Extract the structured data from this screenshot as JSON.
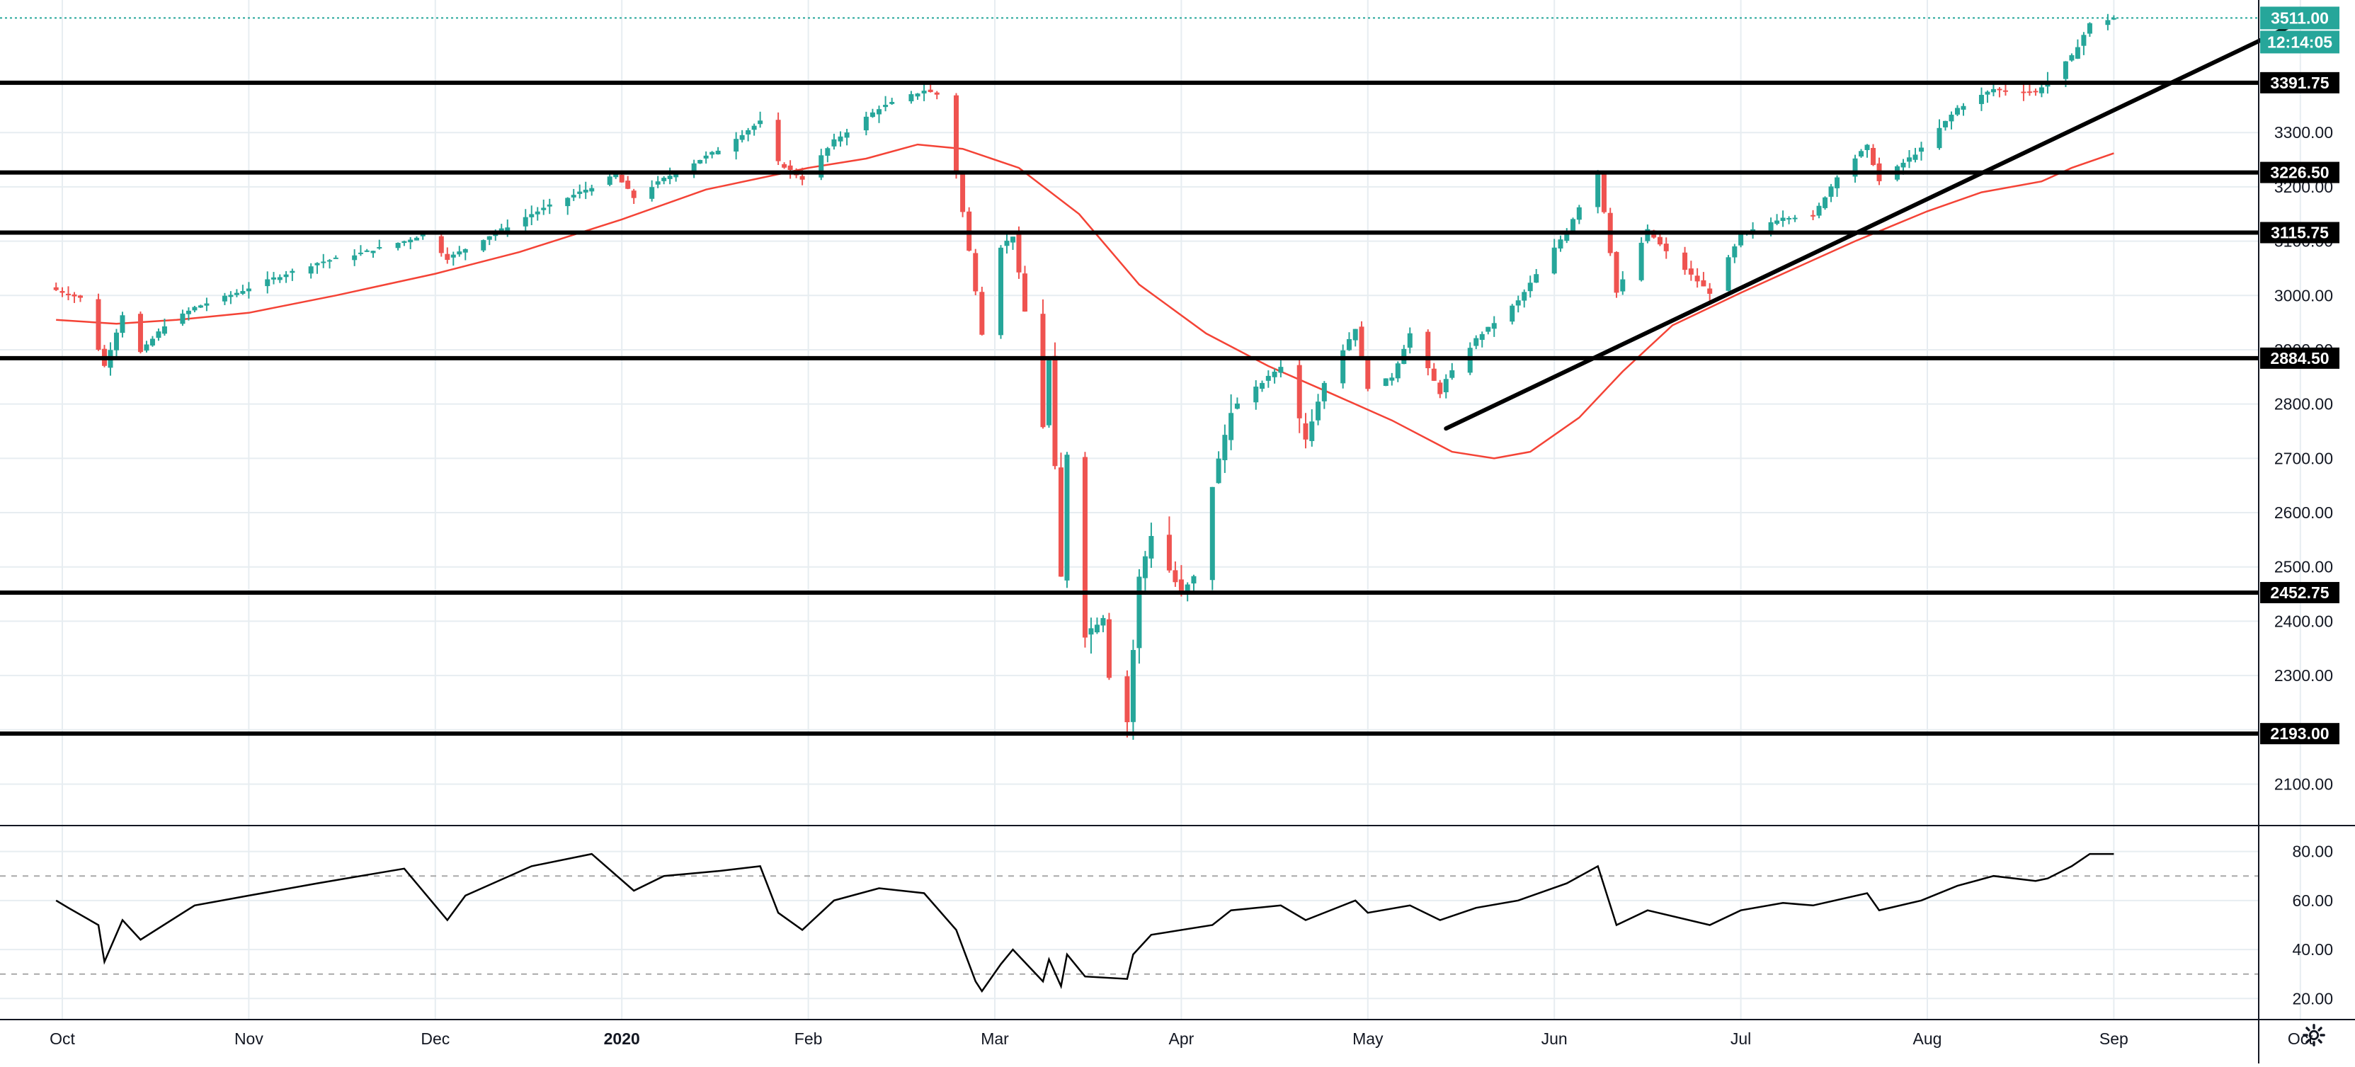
{
  "colors": {
    "up": "#26a69a",
    "down": "#ef5350",
    "ma": "#f44336",
    "grid": "#e7edf1",
    "axis_text": "#131722",
    "level_line": "#000000",
    "last_price": "#26a69a",
    "rsi_line": "#000000"
  },
  "icons": {
    "settings": "gear-icon"
  },
  "chart_data": [
    {
      "type": "candlestick",
      "title": "",
      "xlabel": "",
      "ylabel": "",
      "grid": true,
      "x_tick_labels": [
        "Oct",
        "Nov",
        "Dec",
        "2020",
        "Feb",
        "Mar",
        "Apr",
        "May",
        "Jun",
        "Jul",
        "Aug",
        "Sep",
        "Oct"
      ],
      "y_tick_labels": [
        "2100.00",
        "2200.00",
        "2300.00",
        "2400.00",
        "2500.00",
        "2600.00",
        "2700.00",
        "2800.00",
        "2900.00",
        "3000.00",
        "3100.00",
        "3200.00",
        "3300.00"
      ],
      "y_range": [
        2025,
        3535
      ],
      "last_price": {
        "value": "3511.00",
        "countdown": "12:14:05"
      },
      "horizontal_levels": [
        "3391.75",
        "3226.50",
        "3115.75",
        "2884.50",
        "2452.75",
        "2193.00"
      ],
      "trend_line": {
        "from": [
          "2020-05-14",
          2755
        ],
        "to": [
          "2020-10-01",
          3505
        ]
      },
      "moving_average": [
        [
          "2019-09-30",
          2955
        ],
        [
          "2019-10-10",
          2948
        ],
        [
          "2019-10-20",
          2955
        ],
        [
          "2019-11-01",
          2968
        ],
        [
          "2019-11-15",
          3000
        ],
        [
          "2019-12-01",
          3040
        ],
        [
          "2019-12-15",
          3080
        ],
        [
          "2020-01-01",
          3140
        ],
        [
          "2020-01-15",
          3195
        ],
        [
          "2020-02-01",
          3235
        ],
        [
          "2020-02-10",
          3252
        ],
        [
          "2020-02-18",
          3278
        ],
        [
          "2020-02-25",
          3270
        ],
        [
          "2020-03-05",
          3235
        ],
        [
          "2020-03-15",
          3150
        ],
        [
          "2020-03-25",
          3020
        ],
        [
          "2020-04-05",
          2930
        ],
        [
          "2020-04-15",
          2870
        ],
        [
          "2020-04-25",
          2820
        ],
        [
          "2020-05-05",
          2770
        ],
        [
          "2020-05-15",
          2712
        ],
        [
          "2020-05-22",
          2700
        ],
        [
          "2020-05-28",
          2712
        ],
        [
          "2020-06-05",
          2775
        ],
        [
          "2020-06-12",
          2860
        ],
        [
          "2020-06-20",
          2945
        ],
        [
          "2020-07-01",
          3005
        ],
        [
          "2020-07-10",
          3050
        ],
        [
          "2020-07-20",
          3100
        ],
        [
          "2020-08-01",
          3155
        ],
        [
          "2020-08-10",
          3190
        ],
        [
          "2020-08-20",
          3210
        ],
        [
          "2020-08-25",
          3235
        ],
        [
          "2020-09-01",
          3262
        ]
      ],
      "candle_path": [
        [
          "2019-09-30",
          3010
        ],
        [
          "2019-10-04",
          2995
        ],
        [
          "2019-10-08",
          2870
        ],
        [
          "2019-10-11",
          2965
        ],
        [
          "2019-10-14",
          2895
        ],
        [
          "2019-10-18",
          2945
        ],
        [
          "2019-10-23",
          2978
        ],
        [
          "2019-10-30",
          3005
        ],
        [
          "2019-11-05",
          3032
        ],
        [
          "2019-11-12",
          3060
        ],
        [
          "2019-11-19",
          3078
        ],
        [
          "2019-11-26",
          3100
        ],
        [
          "2019-11-29",
          3112
        ],
        [
          "2019-12-02",
          3080
        ],
        [
          "2019-12-03",
          3068
        ],
        [
          "2019-12-10",
          3110
        ],
        [
          "2019-12-17",
          3150
        ],
        [
          "2019-12-27",
          3200
        ],
        [
          "2019-12-31",
          3222
        ],
        [
          "2020-01-03",
          3180
        ],
        [
          "2020-01-08",
          3215
        ],
        [
          "2020-01-17",
          3268
        ],
        [
          "2020-01-24",
          3320
        ],
        [
          "2020-01-27",
          3245
        ],
        [
          "2020-01-31",
          3215
        ],
        [
          "2020-02-05",
          3285
        ],
        [
          "2020-02-12",
          3345
        ],
        [
          "2020-02-19",
          3378
        ],
        [
          "2020-02-21",
          3370
        ],
        [
          "2020-02-24",
          3225
        ],
        [
          "2020-02-27",
          3010
        ],
        [
          "2020-02-28",
          2930
        ],
        [
          "2020-03-02",
          3090
        ],
        [
          "2020-03-04",
          3110
        ],
        [
          "2020-03-09",
          2760
        ],
        [
          "2020-03-10",
          2880
        ],
        [
          "2020-03-12",
          2480
        ],
        [
          "2020-03-13",
          2710
        ],
        [
          "2020-03-16",
          2375
        ],
        [
          "2020-03-19",
          2410
        ],
        [
          "2020-03-20",
          2300
        ],
        [
          "2020-03-23",
          2215
        ],
        [
          "2020-03-25",
          2480
        ],
        [
          "2020-03-27",
          2560
        ],
        [
          "2020-04-01",
          2450
        ],
        [
          "2020-04-03",
          2480
        ],
        [
          "2020-04-06",
          2650
        ],
        [
          "2020-04-09",
          2790
        ],
        [
          "2020-04-14",
          2840
        ],
        [
          "2020-04-17",
          2870
        ],
        [
          "2020-04-21",
          2740
        ],
        [
          "2020-04-24",
          2840
        ],
        [
          "2020-04-29",
          2940
        ],
        [
          "2020-05-01",
          2830
        ],
        [
          "2020-05-05",
          2850
        ],
        [
          "2020-05-08",
          2930
        ],
        [
          "2020-05-13",
          2820
        ],
        [
          "2020-05-14",
          2845
        ],
        [
          "2020-05-19",
          2920
        ],
        [
          "2020-05-26",
          2990
        ],
        [
          "2020-06-03",
          3120
        ],
        [
          "2020-06-08",
          3230
        ],
        [
          "2020-06-11",
          3005
        ],
        [
          "2020-06-16",
          3120
        ],
        [
          "2020-06-19",
          3080
        ],
        [
          "2020-06-26",
          3005
        ],
        [
          "2020-07-01",
          3110
        ],
        [
          "2020-07-08",
          3145
        ],
        [
          "2020-07-13",
          3145
        ],
        [
          "2020-07-17",
          3220
        ],
        [
          "2020-07-22",
          3275
        ],
        [
          "2020-07-24",
          3210
        ],
        [
          "2020-07-31",
          3270
        ],
        [
          "2020-08-06",
          3345
        ],
        [
          "2020-08-12",
          3380
        ],
        [
          "2020-08-19",
          3375
        ],
        [
          "2020-08-21",
          3395
        ],
        [
          "2020-08-25",
          3440
        ],
        [
          "2020-08-28",
          3500
        ],
        [
          "2020-09-01",
          3511
        ]
      ]
    },
    {
      "type": "line",
      "title": "",
      "series_name": "",
      "y_tick_labels": [
        "20.00",
        "40.00",
        "60.00",
        "80.00"
      ],
      "y_range": [
        12,
        90
      ],
      "reference_levels": [
        30,
        70
      ],
      "points": [
        [
          "2019-09-30",
          60
        ],
        [
          "2019-10-02",
          57
        ],
        [
          "2019-10-07",
          50
        ],
        [
          "2019-10-08",
          35
        ],
        [
          "2019-10-11",
          52
        ],
        [
          "2019-10-14",
          44
        ],
        [
          "2019-10-23",
          58
        ],
        [
          "2019-11-01",
          62
        ],
        [
          "2019-11-12",
          67
        ],
        [
          "2019-11-19",
          70
        ],
        [
          "2019-11-26",
          73
        ],
        [
          "2019-12-03",
          52
        ],
        [
          "2019-12-06",
          62
        ],
        [
          "2019-12-17",
          74
        ],
        [
          "2019-12-27",
          79
        ],
        [
          "2020-01-03",
          64
        ],
        [
          "2020-01-08",
          70
        ],
        [
          "2020-01-17",
          72
        ],
        [
          "2020-01-24",
          74
        ],
        [
          "2020-01-27",
          55
        ],
        [
          "2020-01-31",
          48
        ],
        [
          "2020-02-05",
          60
        ],
        [
          "2020-02-12",
          65
        ],
        [
          "2020-02-19",
          63
        ],
        [
          "2020-02-24",
          48
        ],
        [
          "2020-02-27",
          27
        ],
        [
          "2020-02-28",
          23
        ],
        [
          "2020-03-02",
          34
        ],
        [
          "2020-03-04",
          40
        ],
        [
          "2020-03-09",
          27
        ],
        [
          "2020-03-10",
          36
        ],
        [
          "2020-03-12",
          25
        ],
        [
          "2020-03-13",
          38
        ],
        [
          "2020-03-16",
          29
        ],
        [
          "2020-03-23",
          28
        ],
        [
          "2020-03-24",
          38
        ],
        [
          "2020-03-27",
          46
        ],
        [
          "2020-04-06",
          50
        ],
        [
          "2020-04-09",
          56
        ],
        [
          "2020-04-17",
          58
        ],
        [
          "2020-04-21",
          52
        ],
        [
          "2020-04-29",
          60
        ],
        [
          "2020-05-01",
          55
        ],
        [
          "2020-05-08",
          58
        ],
        [
          "2020-05-13",
          52
        ],
        [
          "2020-05-19",
          57
        ],
        [
          "2020-05-26",
          60
        ],
        [
          "2020-06-03",
          67
        ],
        [
          "2020-06-08",
          74
        ],
        [
          "2020-06-11",
          50
        ],
        [
          "2020-06-16",
          56
        ],
        [
          "2020-06-26",
          50
        ],
        [
          "2020-07-01",
          56
        ],
        [
          "2020-07-08",
          59
        ],
        [
          "2020-07-13",
          58
        ],
        [
          "2020-07-22",
          63
        ],
        [
          "2020-07-24",
          56
        ],
        [
          "2020-07-31",
          60
        ],
        [
          "2020-08-06",
          66
        ],
        [
          "2020-08-12",
          70
        ],
        [
          "2020-08-19",
          68
        ],
        [
          "2020-08-21",
          69
        ],
        [
          "2020-08-25",
          74
        ],
        [
          "2020-08-28",
          79
        ],
        [
          "2020-09-01",
          79
        ]
      ]
    }
  ]
}
